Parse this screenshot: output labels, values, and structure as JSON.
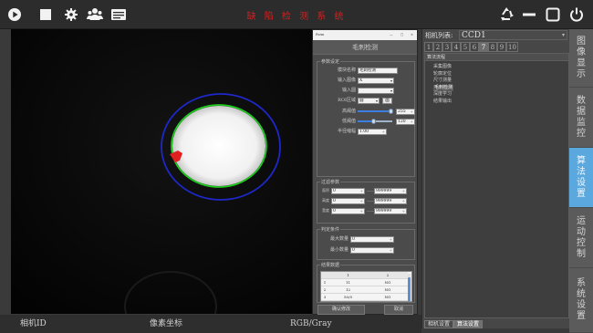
{
  "app": {
    "title": "缺 陷 检 测 系 统",
    "accent_color": "#5aa8de",
    "title_color": "#d81e1e"
  },
  "toolbar": {
    "left_icons": [
      "play-icon",
      "stop-icon",
      "gear-icon",
      "users-icon",
      "monitor-icon"
    ],
    "right_icons": [
      "recycle-icon",
      "minimize-icon",
      "maximize-icon",
      "power-icon"
    ]
  },
  "dialog": {
    "window_title": "Form",
    "window_controls": [
      "—",
      "□",
      "×"
    ],
    "header": "毛刺检测",
    "param_group": {
      "title": "参数设定",
      "module_name_label": "模块名称",
      "module_name_value": "毛刺检测",
      "input_image_label": "输入图像",
      "input_image_value": "X",
      "input_circle_label": "输入圆",
      "input_circle_value": "",
      "roi_label": "ROI区域",
      "roi_value": "圆",
      "roi_button": "画",
      "high_thresh_label": "高阈值",
      "high_thresh_value": "255",
      "high_thresh_level": 1.0,
      "low_thresh_label": "低阈值",
      "low_thresh_value": "120",
      "low_thresh_level": 0.47,
      "radius_label": "半径缩幅",
      "radius_value": "1.00"
    },
    "filter_group": {
      "title": "过滤参数",
      "rows": [
        {
          "label": "面积",
          "min": "0",
          "max": "999999"
        },
        {
          "label": "高度",
          "min": "0",
          "max": "999999"
        },
        {
          "label": "宽度",
          "min": "0",
          "max": "999999"
        }
      ],
      "dash": "——"
    },
    "judge_group": {
      "title": "判定条件",
      "max_count_label": "最大数量",
      "max_count_value": "0",
      "min_count_label": "最小数量",
      "min_count_value": "0"
    },
    "result_group": {
      "title": "结果数据",
      "columns": [
        "1",
        "2"
      ],
      "rows": [
        {
          "idx": "1",
          "c1": "11",
          "c2": "NG"
        },
        {
          "idx": "2",
          "c1": "12",
          "c2": "NG"
        },
        {
          "idx": "3",
          "c1": "50/0",
          "c2": "NG"
        },
        {
          "idx": "4",
          "c1": "0",
          "c2": "NG"
        },
        {
          "idx": "5",
          "c1": "0",
          "c2": "NG"
        },
        {
          "idx": "6",
          "c1": "0",
          "c2": "NG"
        }
      ]
    },
    "confirm_button": "确认修改",
    "cancel_button": "取消"
  },
  "camera_panel": {
    "header_label": "相机列表:",
    "selected_camera": "CCD1",
    "number_tabs": [
      "1",
      "2",
      "3",
      "4",
      "5",
      "6",
      "7",
      "8",
      "9",
      "10"
    ],
    "active_number_tab": "7",
    "flow_title": "算法流程",
    "flow_items": [
      "采集图像",
      "轮廓定位",
      "尺寸测量",
      "毛刺检测",
      "深度学习",
      "结果输出"
    ],
    "selected_flow_item": "毛刺检测",
    "bottom_tabs": [
      "相机设置",
      "算法设置"
    ],
    "active_bottom_tab": "算法设置"
  },
  "side_nav": {
    "items": [
      {
        "id": "image-display",
        "chars": [
          "图",
          "像",
          "显",
          "示"
        ]
      },
      {
        "id": "data-monitor",
        "chars": [
          "数",
          "据",
          "监",
          "控"
        ]
      },
      {
        "id": "algorithm-settings",
        "chars": [
          "算",
          "法",
          "设",
          "置"
        ]
      },
      {
        "id": "motion-control",
        "chars": [
          "运",
          "动",
          "控",
          "制"
        ]
      },
      {
        "id": "system-settings",
        "chars": [
          "系",
          "统",
          "设",
          "置"
        ]
      }
    ],
    "active": "algorithm-settings"
  },
  "statusbar": {
    "camera_id": "相机ID",
    "pixel_coord": "像素坐标",
    "color_mode": "RGB/Gray"
  }
}
